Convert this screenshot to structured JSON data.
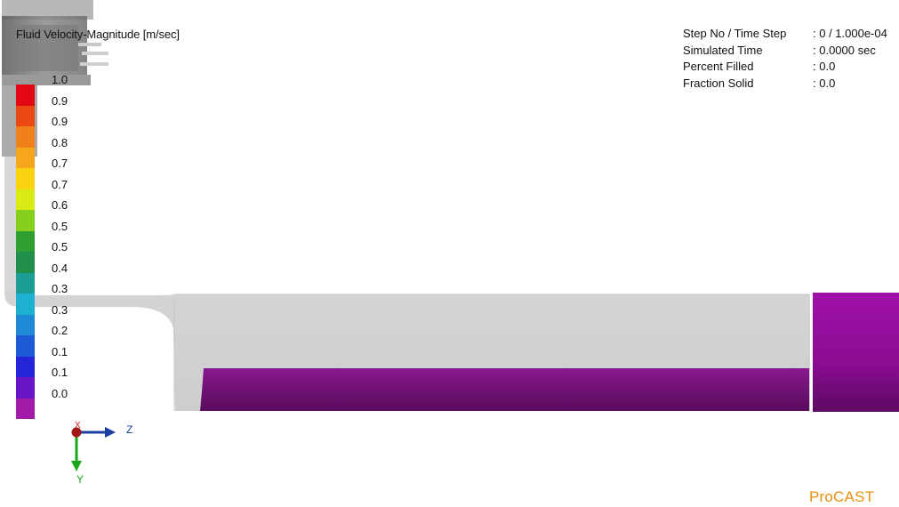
{
  "legend": {
    "title": "Fluid Velocity-Magnitude [m/sec]",
    "labels": [
      "1.0",
      "0.9",
      "0.9",
      "0.8",
      "0.7",
      "0.7",
      "0.6",
      "0.5",
      "0.5",
      "0.4",
      "0.3",
      "0.3",
      "0.2",
      "0.1",
      "0.1",
      "0.0"
    ],
    "colors": [
      "#e30613",
      "#ea4a12",
      "#f0801a",
      "#f6a61a",
      "#fbd20f",
      "#d9eb14",
      "#86cf1c",
      "#2f9e33",
      "#1f8f4a",
      "#1c9e96",
      "#1eb0d0",
      "#1f8ad6",
      "#1d5ad6",
      "#2424d8",
      "#6a14c8",
      "#a21aa8"
    ]
  },
  "info": {
    "rows": [
      {
        "label": "Step No / Time Step",
        "value": ": 0 / 1.000e-04"
      },
      {
        "label": "Simulated Time",
        "value": ": 0.0000 sec"
      },
      {
        "label": "Percent Filled",
        "value": ": 0.0"
      },
      {
        "label": "Fraction Solid",
        "value": ": 0.0"
      }
    ]
  },
  "axes": {
    "z_label": "Z",
    "y_label": "Y",
    "x_label": "X",
    "z_color": "#1a3fa0",
    "y_color": "#1aa61a",
    "x_color": "#cc2020"
  },
  "brand": {
    "label": "ProCAST",
    "color": "#e8920f"
  },
  "colors": {
    "casting_gray": "#d6d6d6",
    "fill_purple": "#8a1891",
    "fill_purple_dark": "#5a0c5e",
    "chamber_purple": "#9b0fa3"
  }
}
